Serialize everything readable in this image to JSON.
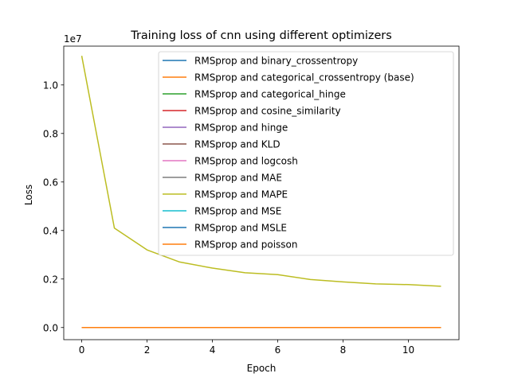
{
  "chart_data": {
    "type": "line",
    "title": "Training loss of cnn using different optimizers",
    "xlabel": "Epoch",
    "ylabel": "Loss",
    "y_multiplier_label": "1e7",
    "xlim": [
      -0.55,
      11.55
    ],
    "ylim": [
      -0.05,
      1.16
    ],
    "x_ticks": [
      0,
      2,
      4,
      6,
      8,
      10
    ],
    "y_ticks": [
      0.0,
      0.2,
      0.4,
      0.6,
      0.8,
      1.0
    ],
    "x_tick_labels": [
      "0",
      "2",
      "4",
      "6",
      "8",
      "10"
    ],
    "y_tick_labels": [
      "0.0",
      "0.2",
      "0.4",
      "0.6",
      "0.8",
      "1.0"
    ],
    "grid": false,
    "legend_position": "top-right",
    "x": [
      0,
      1,
      2,
      3,
      4,
      5,
      6,
      7,
      8,
      9,
      10,
      11
    ],
    "series": [
      {
        "name": "RMSprop and binary_crossentropy",
        "color": "#1f77b4",
        "values": [
          0,
          0,
          0,
          0,
          0,
          0,
          0,
          0,
          0,
          0,
          0,
          0
        ]
      },
      {
        "name": "RMSprop and categorical_crossentropy (base)",
        "color": "#ff7f0e",
        "values": [
          0,
          0,
          0,
          0,
          0,
          0,
          0,
          0,
          0,
          0,
          0,
          0
        ]
      },
      {
        "name": "RMSprop and categorical_hinge",
        "color": "#2ca02c",
        "values": [
          0,
          0,
          0,
          0,
          0,
          0,
          0,
          0,
          0,
          0,
          0,
          0
        ]
      },
      {
        "name": "RMSprop and cosine_similarity",
        "color": "#d62728",
        "values": [
          0,
          0,
          0,
          0,
          0,
          0,
          0,
          0,
          0,
          0,
          0,
          0
        ]
      },
      {
        "name": "RMSprop and hinge",
        "color": "#9467bd",
        "values": [
          0,
          0,
          0,
          0,
          0,
          0,
          0,
          0,
          0,
          0,
          0,
          0
        ]
      },
      {
        "name": "RMSprop and KLD",
        "color": "#8c564b",
        "values": [
          0,
          0,
          0,
          0,
          0,
          0,
          0,
          0,
          0,
          0,
          0,
          0
        ]
      },
      {
        "name": "RMSprop and logcosh",
        "color": "#e377c2",
        "values": [
          0,
          0,
          0,
          0,
          0,
          0,
          0,
          0,
          0,
          0,
          0,
          0
        ]
      },
      {
        "name": "RMSprop and MAE",
        "color": "#7f7f7f",
        "values": [
          0,
          0,
          0,
          0,
          0,
          0,
          0,
          0,
          0,
          0,
          0,
          0
        ]
      },
      {
        "name": "RMSprop and MAPE",
        "color": "#bcbd22",
        "values": [
          1.12,
          0.41,
          0.32,
          0.27,
          0.245,
          0.226,
          0.218,
          0.198,
          0.188,
          0.18,
          0.177,
          0.17
        ]
      },
      {
        "name": "RMSprop and MSE",
        "color": "#17becf",
        "values": [
          0,
          0,
          0,
          0,
          0,
          0,
          0,
          0,
          0,
          0,
          0,
          0
        ]
      },
      {
        "name": "RMSprop and MSLE",
        "color": "#1f77b4",
        "values": [
          0,
          0,
          0,
          0,
          0,
          0,
          0,
          0,
          0,
          0,
          0,
          0
        ]
      },
      {
        "name": "RMSprop and poisson",
        "color": "#ff7f0e",
        "values": [
          0,
          0,
          0,
          0,
          0,
          0,
          0,
          0,
          0,
          0,
          0,
          0
        ]
      }
    ]
  }
}
